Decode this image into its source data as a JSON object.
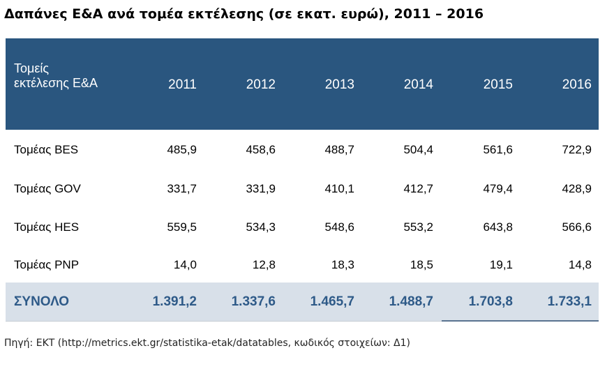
{
  "title": "Δαπάνες Ε&Α ανά τομέα εκτέλεσης (σε εκατ. ευρώ), 2011 – 2016",
  "table": {
    "header_label": "Τομείς εκτέλεσης Ε&Α",
    "years": [
      "2011",
      "2012",
      "2013",
      "2014",
      "2015",
      "2016"
    ],
    "rows": [
      {
        "label": "Τομέας BES",
        "values": [
          "485,9",
          "458,6",
          "488,7",
          "504,4",
          "561,6",
          "722,9"
        ]
      },
      {
        "label": "Τομέας GOV",
        "values": [
          "331,7",
          "331,9",
          "410,1",
          "412,7",
          "479,4",
          "428,9"
        ]
      },
      {
        "label": "Τομέας HES",
        "values": [
          "559,5",
          "534,3",
          "548,6",
          "553,2",
          "643,8",
          "566,6"
        ]
      },
      {
        "label": "Τομέας PNP",
        "values": [
          "14,0",
          "12,8",
          "18,3",
          "18,5",
          "19,1",
          "14,8"
        ]
      }
    ],
    "total": {
      "label": "ΣΥΝΟΛΟ",
      "values": [
        "1.391,2",
        "1.337,6",
        "1.465,7",
        "1.488,7",
        "1.703,8",
        "1.733,1"
      ]
    }
  },
  "source": "Πηγή: ΕΚΤ (http://metrics.ekt.gr/statistika-etak/datatables, κωδικός στοιχείων: Δ1)"
}
